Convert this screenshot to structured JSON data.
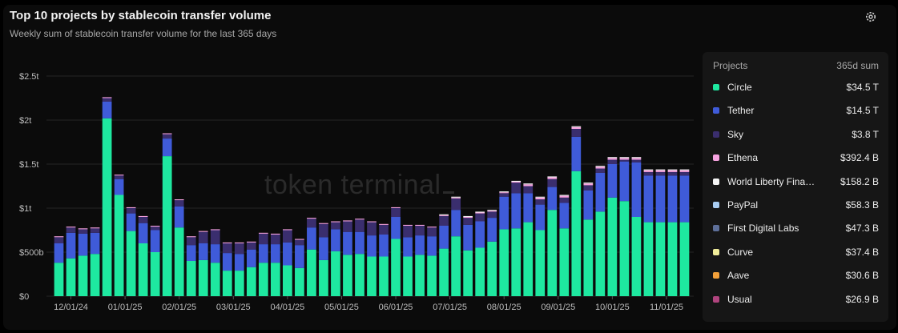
{
  "header": {
    "title": "Top 10 projects by stablecoin transfer volume",
    "subtitle": "Weekly sum of stablecoin transfer volume for the last 365 days"
  },
  "watermark": "token terminal",
  "icons": {
    "settings": "gear-icon"
  },
  "legend": {
    "header_left": "Projects",
    "header_right": "365d sum",
    "items": [
      {
        "name": "Circle",
        "value": "$34.5 T",
        "color": "#1ee8a0"
      },
      {
        "name": "Tether",
        "value": "$14.5 T",
        "color": "#3f5bd9"
      },
      {
        "name": "Sky",
        "value": "$3.8 T",
        "color": "#3a2e6e"
      },
      {
        "name": "Ethena",
        "value": "$392.4 B",
        "color": "#f7a3e0"
      },
      {
        "name": "World Liberty Fina…",
        "value": "$158.2 B",
        "color": "#f4f4f4"
      },
      {
        "name": "PayPal",
        "value": "$58.3 B",
        "color": "#a9cdf2"
      },
      {
        "name": "First Digital Labs",
        "value": "$47.3 B",
        "color": "#5d6f99"
      },
      {
        "name": "Curve",
        "value": "$37.4 B",
        "color": "#f0ec9a"
      },
      {
        "name": "Aave",
        "value": "$30.6 B",
        "color": "#f2a03a"
      },
      {
        "name": "Usual",
        "value": "$26.9 B",
        "color": "#b0447e"
      }
    ]
  },
  "chart_data": {
    "type": "bar",
    "stacked": true,
    "title": "Top 10 projects by stablecoin transfer volume",
    "subtitle": "Weekly sum of stablecoin transfer volume for the last 365 days",
    "y_unit": "$ (billions)",
    "ylim": [
      0,
      2500
    ],
    "y_ticks": [
      0,
      500,
      1000,
      1500,
      2000,
      2500
    ],
    "y_tick_labels": [
      "$0",
      "$500b",
      "$1t",
      "$1.5t",
      "$2t",
      "$2.5t"
    ],
    "x_tick_labels": [
      "12/01/24",
      "01/01/25",
      "02/01/25",
      "03/01/25",
      "04/01/25",
      "05/01/25",
      "06/01/25",
      "07/01/25",
      "08/01/25",
      "09/01/25",
      "10/01/25",
      "11/01/25"
    ],
    "x_tick_weeks": [
      1,
      5.5,
      10,
      14.5,
      19,
      23.5,
      28,
      32.5,
      37,
      41.5,
      46,
      50.5
    ],
    "weeks": 53,
    "grid": "horizontal",
    "legend_position": "right",
    "series": [
      {
        "name": "Circle",
        "color": "#1ee8a0",
        "values": [
          380,
          430,
          460,
          480,
          2020,
          1150,
          740,
          600,
          500,
          1590,
          780,
          400,
          410,
          380,
          290,
          290,
          330,
          380,
          380,
          350,
          320,
          530,
          410,
          510,
          470,
          480,
          450,
          450,
          650,
          450,
          470,
          460,
          540,
          680,
          520,
          550,
          620,
          760,
          770,
          840,
          750,
          980,
          770,
          1420,
          870,
          960,
          1120,
          1080,
          900,
          840,
          840,
          840,
          840
        ]
      },
      {
        "name": "Tether",
        "color": "#3f5bd9",
        "values": [
          220,
          290,
          250,
          240,
          190,
          180,
          200,
          230,
          250,
          200,
          240,
          180,
          190,
          210,
          200,
          190,
          200,
          210,
          210,
          260,
          260,
          250,
          260,
          250,
          260,
          250,
          240,
          250,
          250,
          220,
          220,
          220,
          260,
          300,
          290,
          300,
          270,
          370,
          400,
          330,
          290,
          260,
          290,
          390,
          330,
          440,
          380,
          450,
          620,
          530,
          530,
          530,
          530
        ]
      },
      {
        "name": "Sky",
        "color": "#3a2e6e",
        "values": [
          70,
          60,
          50,
          50,
          40,
          40,
          60,
          70,
          40,
          50,
          70,
          90,
          130,
          160,
          110,
          120,
          80,
          120,
          110,
          140,
          60,
          100,
          150,
          80,
          120,
          140,
          150,
          110,
          100,
          130,
          110,
          100,
          110,
          130,
          80,
          90,
          70,
          40,
          120,
          80,
          60,
          90,
          60,
          90,
          60,
          50,
          50,
          20,
          30,
          40,
          40,
          40,
          40
        ]
      },
      {
        "name": "Ethena",
        "color": "#f7a3e0",
        "values": [
          10,
          10,
          10,
          10,
          10,
          10,
          10,
          10,
          10,
          10,
          10,
          10,
          10,
          10,
          10,
          10,
          10,
          10,
          10,
          10,
          10,
          10,
          10,
          10,
          10,
          10,
          10,
          10,
          10,
          10,
          10,
          10,
          10,
          10,
          10,
          10,
          10,
          10,
          10,
          20,
          20,
          20,
          20,
          20,
          20,
          20,
          20,
          20,
          20,
          20,
          20,
          20,
          20
        ]
      },
      {
        "name": "World Liberty Financial",
        "color": "#f4f4f4",
        "values": [
          0,
          0,
          0,
          0,
          0,
          0,
          0,
          0,
          0,
          0,
          0,
          0,
          0,
          0,
          0,
          0,
          0,
          0,
          0,
          0,
          0,
          0,
          0,
          0,
          0,
          0,
          0,
          0,
          0,
          0,
          0,
          0,
          10,
          10,
          10,
          10,
          10,
          10,
          10,
          10,
          10,
          10,
          10,
          10,
          10,
          10,
          10,
          10,
          10,
          10,
          10,
          10,
          10
        ]
      }
    ],
    "minor_series_note": "PayPal, First Digital Labs, Curve, Aave, Usual are too small to see on the chart"
  }
}
